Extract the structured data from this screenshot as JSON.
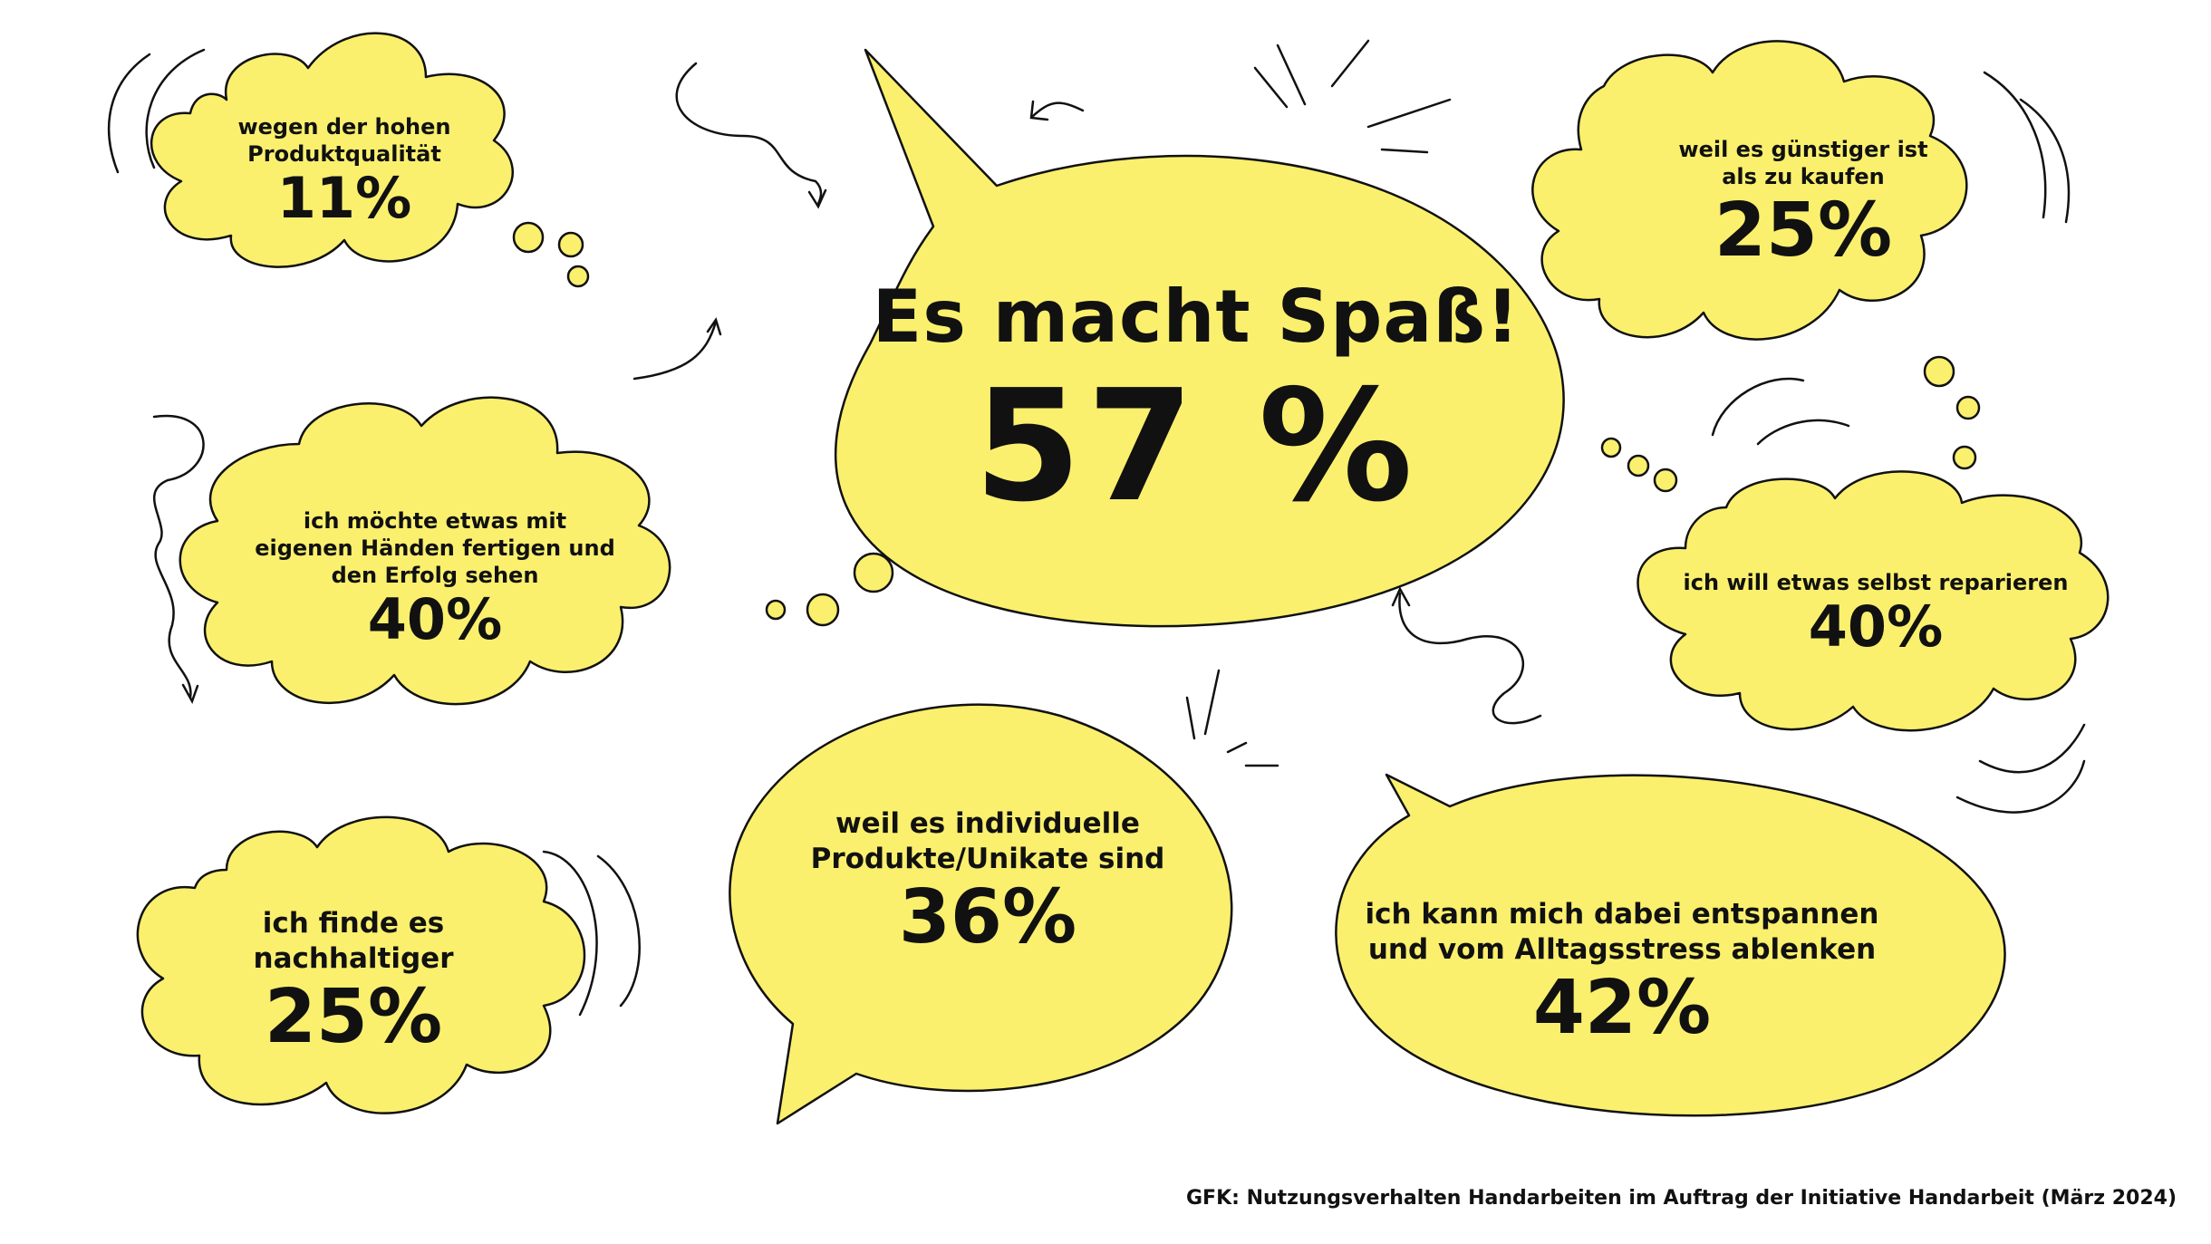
{
  "colors": {
    "bubble_fill": "#FAF06E",
    "outline": "#111111",
    "background": "#FFFFFF"
  },
  "main": {
    "label": "Es macht Spaß!",
    "value": "57 %"
  },
  "reasons": {
    "quality": {
      "label_lines": [
        "wegen der hohen",
        "Produktqualität"
      ],
      "value": "11%"
    },
    "hands": {
      "label_lines": [
        "ich möchte etwas mit",
        "eigenen Händen fertigen und",
        "den Erfolg  sehen"
      ],
      "value": "40%"
    },
    "sustainable": {
      "label_lines": [
        "ich finde es",
        "nachhaltiger"
      ],
      "value": "25%"
    },
    "unique": {
      "label_lines": [
        "weil es individuelle",
        "Produkte/Unikate sind"
      ],
      "value": "36%"
    },
    "cheaper": {
      "label_lines": [
        "weil es günstiger ist",
        "als zu kaufen"
      ],
      "value": "25%"
    },
    "repair": {
      "label_lines": [
        "ich will etwas selbst reparieren"
      ],
      "value": "40%"
    },
    "relax": {
      "label_lines": [
        "ich kann mich dabei entspannen",
        "und vom Alltagsstress ablenken"
      ],
      "value": "42%"
    }
  },
  "source": "GFK: Nutzungsverhalten Handarbeiten im Auftrag der Initiative Handarbeit (März 2024)"
}
